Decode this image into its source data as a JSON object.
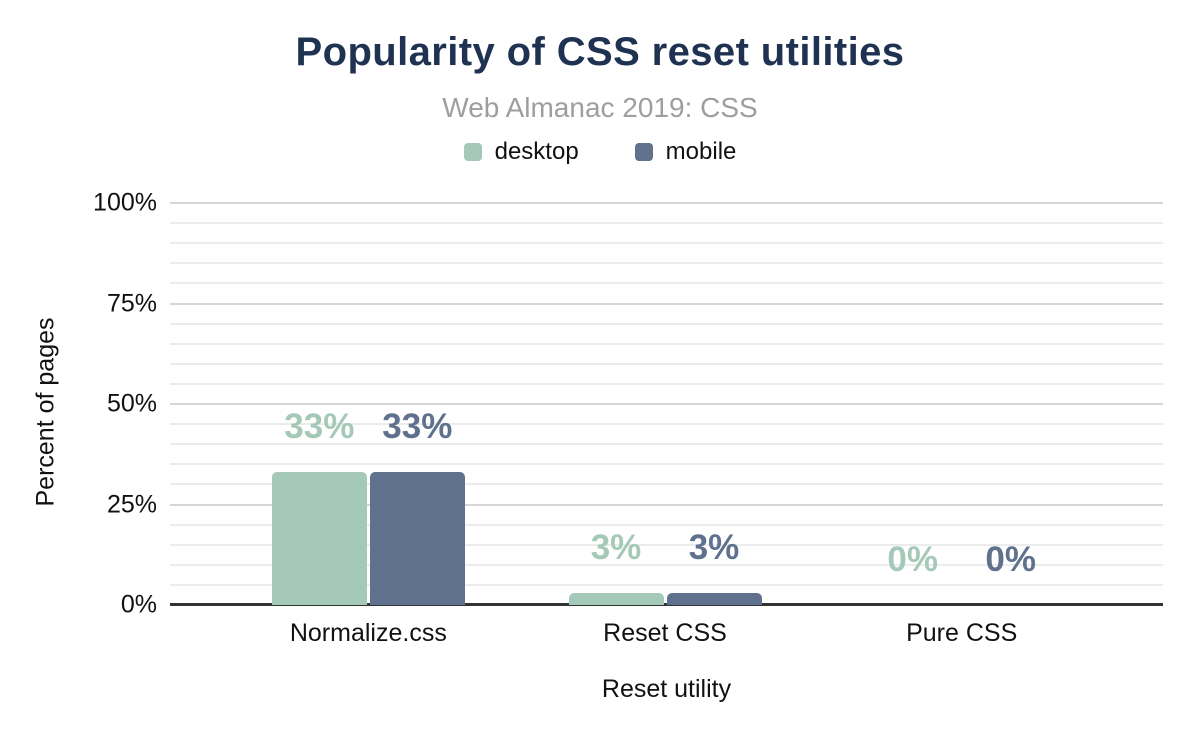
{
  "chart_data": {
    "type": "bar",
    "title": "Popularity of CSS reset utilities",
    "subtitle": "Web Almanac 2019: CSS",
    "xlabel": "Reset utility",
    "ylabel": "Percent of pages",
    "categories": [
      "Normalize.css",
      "Reset CSS",
      "Pure CSS"
    ],
    "series": [
      {
        "name": "desktop",
        "color": "#a5c9b8",
        "values": [
          33,
          3,
          0
        ]
      },
      {
        "name": "mobile",
        "color": "#5f718d",
        "values": [
          33,
          3,
          0
        ]
      }
    ],
    "value_suffix": "%",
    "ylim": [
      0,
      100
    ],
    "yticks": [
      0,
      25,
      50,
      75,
      100
    ],
    "minor_grid_step": 5,
    "grid": true,
    "legend_position": "top"
  },
  "colors": {
    "title": "#1f3251",
    "subtitle": "#9e9e9e",
    "axis_text": "#111111",
    "grid_minor": "#ececec",
    "grid_major": "#d6d6d6",
    "axis_line": "#333333",
    "background": "#ffffff"
  }
}
